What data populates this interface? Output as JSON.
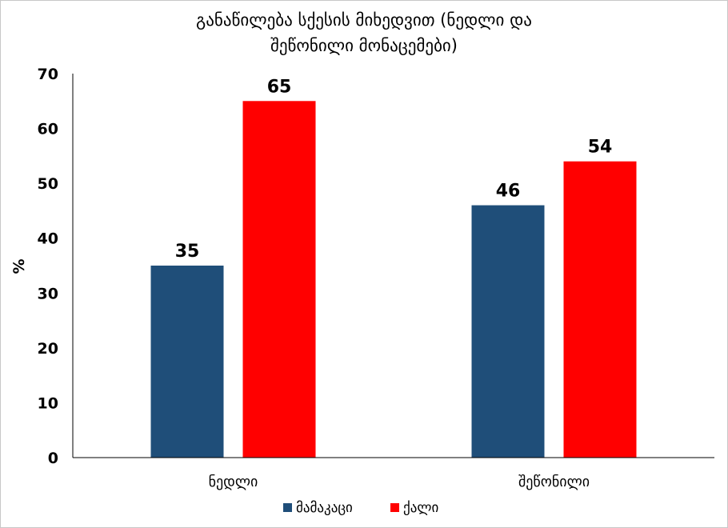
{
  "chart_data": {
    "type": "bar",
    "title_lines": [
      "განაწილება სქესის მიხედვით (ნედლი და",
      "შეწონილი მონაცემები)"
    ],
    "ylabel": "%",
    "ylim": [
      0,
      70
    ],
    "yticks": [
      0,
      10,
      20,
      30,
      40,
      50,
      60,
      70
    ],
    "categories": [
      "ნედლი",
      "შეწონილი"
    ],
    "series": [
      {
        "name": "მამაკაცი",
        "values": [
          35,
          46
        ],
        "labels": [
          "35",
          "46"
        ],
        "color": "#1f4e79"
      },
      {
        "name": "ქალი",
        "values": [
          65,
          54
        ],
        "labels": [
          "65",
          "54"
        ],
        "color": "#ff0000"
      }
    ],
    "grid": false,
    "legend_position": "bottom"
  }
}
